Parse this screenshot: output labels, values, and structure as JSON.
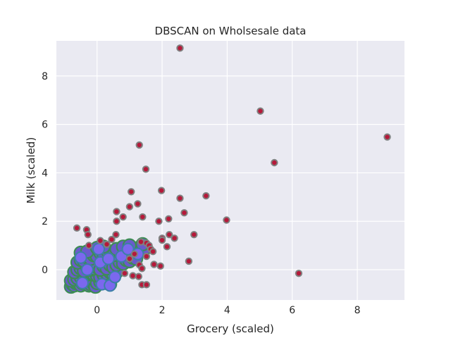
{
  "chart_data": {
    "type": "scatter",
    "title": "DBSCAN on Wholsesale data",
    "xlabel": "Grocery (scaled)",
    "ylabel": "Milk (scaled)",
    "xlim": [
      -1.25,
      9.45
    ],
    "ylim": [
      -1.25,
      9.45
    ],
    "xticks": [
      0,
      2,
      4,
      6,
      8
    ],
    "yticks": [
      0,
      2,
      4,
      6,
      8
    ],
    "grid": true,
    "legend": "none",
    "colors": {
      "background": "#eaeaf2",
      "grid": "#ffffff",
      "cluster0_fill": "#6a5acd",
      "cluster0_edge": "#3d8c55",
      "cluster1_fill": "#7b68ee",
      "cluster1_edge": "#3b7fa6",
      "noise_fill": "#b5193a",
      "noise_edge": "#808080"
    },
    "series": [
      {
        "role": "cluster-0",
        "points": [
          [
            -0.8,
            -0.7
          ],
          [
            -0.75,
            -0.6
          ],
          [
            -0.7,
            -0.65
          ],
          [
            -0.65,
            -0.55
          ],
          [
            -0.6,
            -0.5
          ],
          [
            -0.55,
            -0.6
          ],
          [
            -0.5,
            -0.65
          ],
          [
            -0.45,
            -0.55
          ],
          [
            -0.4,
            -0.5
          ],
          [
            -0.35,
            -0.6
          ],
          [
            -0.3,
            -0.55
          ],
          [
            -0.25,
            -0.65
          ],
          [
            -0.2,
            -0.6
          ],
          [
            -0.15,
            -0.5
          ],
          [
            -0.1,
            -0.6
          ],
          [
            -0.05,
            -0.7
          ],
          [
            0.0,
            -0.55
          ],
          [
            0.1,
            -0.5
          ],
          [
            0.2,
            -0.45
          ],
          [
            0.3,
            -0.55
          ],
          [
            0.4,
            -0.6
          ],
          [
            -0.8,
            -0.45
          ],
          [
            -0.7,
            -0.4
          ],
          [
            -0.6,
            -0.35
          ],
          [
            -0.5,
            -0.3
          ],
          [
            -0.4,
            -0.25
          ],
          [
            -0.3,
            -0.2
          ],
          [
            -0.2,
            -0.15
          ],
          [
            -0.1,
            -0.2
          ],
          [
            0.0,
            -0.25
          ],
          [
            0.1,
            -0.3
          ],
          [
            0.2,
            -0.2
          ],
          [
            0.3,
            -0.15
          ],
          [
            0.4,
            -0.1
          ],
          [
            0.5,
            -0.2
          ],
          [
            0.6,
            -0.1
          ],
          [
            -0.7,
            -0.1
          ],
          [
            -0.6,
            0.0
          ],
          [
            -0.5,
            0.05
          ],
          [
            -0.4,
            -0.05
          ],
          [
            -0.3,
            0.1
          ],
          [
            -0.2,
            0.0
          ],
          [
            -0.1,
            0.05
          ],
          [
            0.0,
            0.1
          ],
          [
            0.1,
            0.0
          ],
          [
            0.2,
            0.15
          ],
          [
            0.3,
            0.05
          ],
          [
            0.4,
            0.2
          ],
          [
            0.5,
            0.1
          ],
          [
            0.6,
            0.2
          ],
          [
            0.7,
            0.3
          ],
          [
            0.8,
            0.25
          ],
          [
            0.9,
            0.4
          ],
          [
            1.0,
            0.35
          ],
          [
            1.1,
            0.5
          ],
          [
            1.2,
            0.45
          ],
          [
            -0.6,
            0.3
          ],
          [
            -0.5,
            0.4
          ],
          [
            -0.4,
            0.35
          ],
          [
            -0.3,
            0.5
          ],
          [
            -0.2,
            0.45
          ],
          [
            -0.1,
            0.6
          ],
          [
            0.0,
            0.55
          ],
          [
            0.1,
            0.7
          ],
          [
            0.2,
            0.65
          ],
          [
            0.3,
            0.8
          ],
          [
            0.5,
            0.6
          ],
          [
            0.7,
            0.7
          ],
          [
            0.9,
            0.8
          ],
          [
            1.1,
            0.9
          ],
          [
            1.3,
            0.8
          ],
          [
            1.5,
            0.9
          ],
          [
            -0.5,
            0.7
          ],
          [
            -0.3,
            0.75
          ],
          [
            0.0,
            0.9
          ],
          [
            0.2,
            0.95
          ],
          [
            0.6,
            0.85
          ],
          [
            0.8,
            0.95
          ],
          [
            1.0,
            1.0
          ],
          [
            1.4,
            1.05
          ]
        ]
      },
      {
        "role": "cluster-1",
        "points": [
          [
            -0.45,
            -0.55
          ],
          [
            0.15,
            -0.6
          ],
          [
            0.4,
            -0.65
          ],
          [
            -0.3,
            0.0
          ],
          [
            0.1,
            0.3
          ],
          [
            0.35,
            0.45
          ],
          [
            0.75,
            0.55
          ],
          [
            0.95,
            0.85
          ],
          [
            0.05,
            0.85
          ],
          [
            -0.5,
            0.5
          ],
          [
            1.25,
            0.65
          ],
          [
            0.55,
            -0.3
          ]
        ]
      },
      {
        "role": "noise",
        "points": [
          [
            2.55,
            9.15
          ],
          [
            5.02,
            6.55
          ],
          [
            8.92,
            5.48
          ],
          [
            5.45,
            4.42
          ],
          [
            1.3,
            5.15
          ],
          [
            1.5,
            4.15
          ],
          [
            1.05,
            3.22
          ],
          [
            1.98,
            3.27
          ],
          [
            2.55,
            2.95
          ],
          [
            3.35,
            3.05
          ],
          [
            1.25,
            2.72
          ],
          [
            1.0,
            2.6
          ],
          [
            0.6,
            2.4
          ],
          [
            0.8,
            2.18
          ],
          [
            1.4,
            2.18
          ],
          [
            0.6,
            2.0
          ],
          [
            1.9,
            2.0
          ],
          [
            2.2,
            2.1
          ],
          [
            2.68,
            2.35
          ],
          [
            3.98,
            2.05
          ],
          [
            -0.62,
            1.72
          ],
          [
            -0.32,
            1.65
          ],
          [
            -0.28,
            1.45
          ],
          [
            0.58,
            1.45
          ],
          [
            0.45,
            1.25
          ],
          [
            1.35,
            1.15
          ],
          [
            1.52,
            1.1
          ],
          [
            1.6,
            1.0
          ],
          [
            1.65,
            0.85
          ],
          [
            1.72,
            0.75
          ],
          [
            1.52,
            0.55
          ],
          [
            2.0,
            1.3
          ],
          [
            2.22,
            1.45
          ],
          [
            2.38,
            1.3
          ],
          [
            2.0,
            1.22
          ],
          [
            2.15,
            0.95
          ],
          [
            2.98,
            1.45
          ],
          [
            -0.25,
            1.0
          ],
          [
            0.1,
            1.2
          ],
          [
            0.3,
            1.05
          ],
          [
            1.15,
            0.65
          ],
          [
            1.0,
            0.45
          ],
          [
            1.3,
            0.2
          ],
          [
            1.38,
            0.05
          ],
          [
            1.75,
            0.22
          ],
          [
            1.95,
            0.15
          ],
          [
            2.82,
            0.35
          ],
          [
            6.2,
            -0.15
          ],
          [
            1.38,
            -0.62
          ],
          [
            1.52,
            -0.62
          ],
          [
            1.1,
            -0.25
          ],
          [
            1.28,
            -0.28
          ],
          [
            0.85,
            -0.15
          ]
        ]
      }
    ]
  }
}
